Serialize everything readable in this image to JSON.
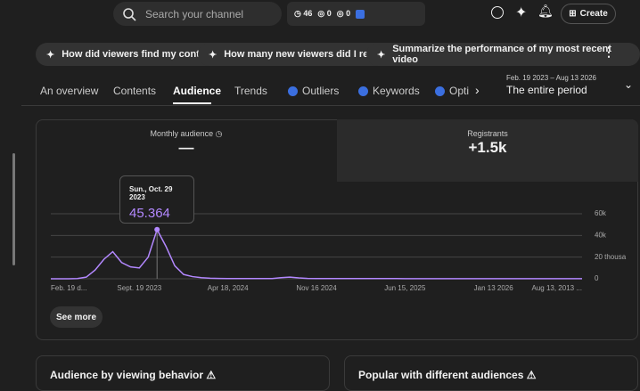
{
  "search": {
    "placeholder": "Search your channel"
  },
  "toolbar": {
    "stats": [
      "46",
      "0",
      "0"
    ],
    "create": "Create"
  },
  "prompts": [
    "How did viewers find my content?",
    "How many new viewers did I reach?",
    "Summarize the performance of my most recent video"
  ],
  "tabs": [
    "An overview",
    "Contents",
    "Audience",
    "Trends",
    "Outliers",
    "Keywords",
    "Opti"
  ],
  "period": {
    "range": "Feb. 19 2023 – Aug 13 2026",
    "label": "The entire period"
  },
  "metrics": [
    {
      "label": "Monthly audience",
      "value": "—"
    },
    {
      "label": "Registrants",
      "value": "+1.5k"
    }
  ],
  "tooltip": {
    "date": "Sun., Oct. 29 2023",
    "value": "45.364"
  },
  "chart": {
    "type": "line",
    "categories": [
      "Feb. 19 d...",
      null,
      null,
      null,
      null,
      null,
      null,
      null,
      null,
      null,
      "Sept. 19 2023",
      null,
      null,
      null,
      null,
      null,
      null,
      null,
      null,
      null,
      "Apr 18, 2024",
      null,
      null,
      null,
      null,
      null,
      null,
      null,
      null,
      null,
      "Nov 16 2024",
      null,
      null,
      null,
      null,
      null,
      null,
      null,
      null,
      null,
      "Jun 15, 2025",
      null,
      null,
      null,
      null,
      null,
      null,
      null,
      null,
      null,
      "Jan 13 2026",
      null,
      null,
      null,
      null,
      null,
      null,
      null,
      null,
      null,
      "Aug 13, 2013 ..."
    ],
    "series": [
      {
        "name": "Monthly audience",
        "color": "#b388ff",
        "values": [
          0,
          0,
          0,
          200,
          1500,
          8000,
          18000,
          25000,
          15000,
          11000,
          10000,
          20000,
          45364,
          30000,
          12000,
          4000,
          2000,
          1000,
          500,
          300,
          200,
          200,
          200,
          200,
          200,
          200,
          1000,
          1500,
          800,
          300,
          200,
          200,
          200,
          200,
          200,
          200,
          200,
          200,
          200,
          200,
          150,
          150,
          150,
          150,
          150,
          150,
          150,
          150,
          150,
          150,
          100,
          100,
          100,
          100,
          100,
          100,
          100,
          100,
          100,
          100,
          100
        ]
      }
    ],
    "ylim": [
      0,
      60000
    ],
    "yticks": [
      0,
      {
        "value": 20000,
        "label": "20 thousa"
      },
      {
        "value": 40000,
        "label": "40k"
      },
      {
        "value": 60000,
        "label": "60k"
      }
    ],
    "grid": true
  },
  "buttons": {
    "see_more": "See more"
  },
  "sections": [
    "Audience by viewing behavior",
    "Popular with different audiences"
  ]
}
